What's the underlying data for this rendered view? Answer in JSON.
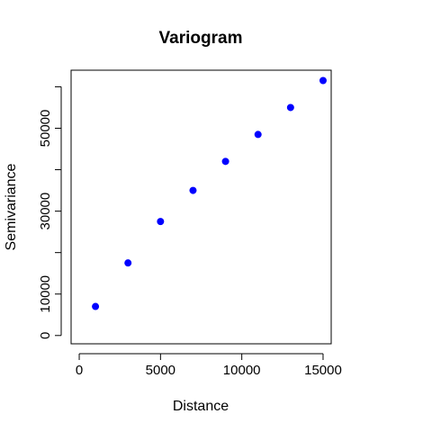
{
  "chart_data": {
    "type": "scatter",
    "title": "Variogram",
    "xlabel": "Distance",
    "ylabel": "Semivariance",
    "xlim": [
      -500,
      15500
    ],
    "ylim": [
      -2000,
      64000
    ],
    "x_ticks": [
      0,
      5000,
      10000,
      15000
    ],
    "x_tick_labels": [
      "0",
      "5000",
      "10000",
      "15000"
    ],
    "y_ticks": [
      0,
      10000,
      30000,
      50000
    ],
    "y_tick_labels": [
      "0",
      "10000",
      "30000",
      "50000"
    ],
    "y_minor_ticks": [
      0,
      10000,
      20000,
      30000,
      40000,
      50000,
      60000
    ],
    "grid": false,
    "legend": "none",
    "point_color": "#0000ff",
    "series": [
      {
        "x": [
          1000,
          3000,
          5000,
          7000,
          9000,
          11000,
          13000,
          15000
        ],
        "y": [
          7000,
          17500,
          27500,
          35000,
          42000,
          48500,
          55000,
          61500
        ]
      }
    ]
  }
}
